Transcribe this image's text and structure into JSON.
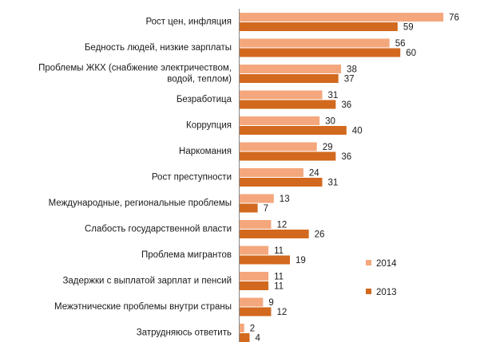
{
  "chart_data": {
    "type": "bar",
    "orientation": "horizontal",
    "categories": [
      [
        "Рост цен, инфляция"
      ],
      [
        "Бедность людей, низкие зарплаты"
      ],
      [
        "Проблемы ЖКХ (снабжение электричеством,",
        "водой, теплом)"
      ],
      [
        "Безработица"
      ],
      [
        "Коррупция"
      ],
      [
        "Наркомания"
      ],
      [
        "Рост преступности"
      ],
      [
        "Международные, региональные проблемы"
      ],
      [
        "Слабость государственной власти"
      ],
      [
        "Проблема мигрантов"
      ],
      [
        "Задержки с выплатой зарплат и пенсий"
      ],
      [
        "Межэтнические проблемы внутри страны"
      ],
      [
        "Затрудняюсь ответить"
      ]
    ],
    "series": [
      {
        "name": "2014",
        "color": "#F4A77C",
        "values": [
          76,
          56,
          38,
          31,
          30,
          29,
          24,
          13,
          12,
          11,
          11,
          9,
          2
        ]
      },
      {
        "name": "2013",
        "color": "#D2691E",
        "values": [
          59,
          60,
          37,
          36,
          40,
          36,
          31,
          7,
          26,
          19,
          11,
          12,
          4
        ]
      }
    ],
    "xlim": [
      0,
      80
    ],
    "grid": false,
    "legend_position": "bottom-right"
  }
}
